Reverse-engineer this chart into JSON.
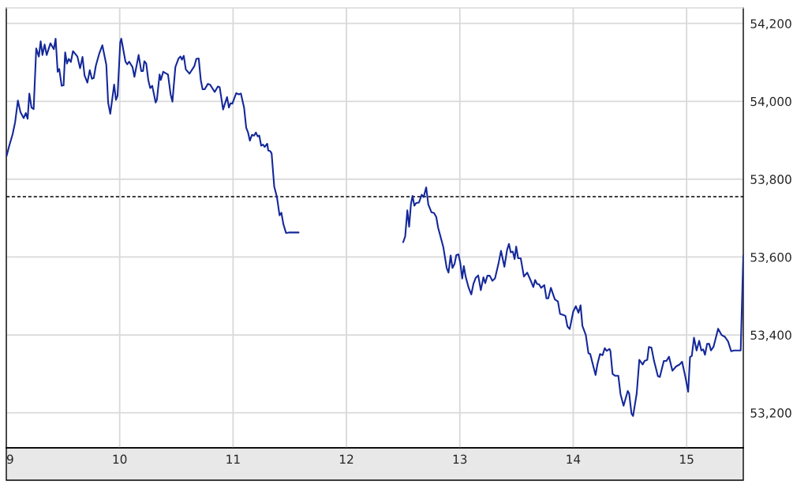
{
  "chart_data": {
    "type": "line",
    "x": [
      9.002,
      9.026,
      9.056,
      9.078,
      9.102,
      9.125,
      9.153,
      9.172,
      9.188,
      9.203,
      9.222,
      9.241,
      9.264,
      9.287,
      9.303,
      9.319,
      9.338,
      9.356,
      9.389,
      9.419,
      9.435,
      9.453,
      9.467,
      9.488,
      9.505,
      9.519,
      9.535,
      9.551,
      9.569,
      9.588,
      9.627,
      9.651,
      9.672,
      9.69,
      9.715,
      9.736,
      9.755,
      9.771,
      9.79,
      9.819,
      9.847,
      9.882,
      9.898,
      9.917,
      9.951,
      9.967,
      9.981,
      10.005,
      10.014,
      10.051,
      10.067,
      10.083,
      10.113,
      10.13,
      10.167,
      10.19,
      10.206,
      10.217,
      10.234,
      10.252,
      10.269,
      10.287,
      10.317,
      10.328,
      10.352,
      10.363,
      10.384,
      10.426,
      10.449,
      10.465,
      10.491,
      10.519,
      10.537,
      10.549,
      10.565,
      10.583,
      10.616,
      10.658,
      10.676,
      10.697,
      10.715,
      10.731,
      10.75,
      10.778,
      10.797,
      10.838,
      10.866,
      10.882,
      10.912,
      10.947,
      10.963,
      10.977,
      10.993,
      11.028,
      11.051,
      11.069,
      11.097,
      11.116,
      11.132,
      11.148,
      11.167,
      11.185,
      11.201,
      11.217,
      11.231,
      11.248,
      11.264,
      11.278,
      11.301,
      11.31,
      11.328,
      11.34,
      11.363,
      11.387,
      11.41,
      11.426,
      11.444,
      11.467,
      11.491,
      11.578,
      12.0,
      12.5,
      12.518,
      12.537,
      12.553,
      12.569,
      12.583,
      12.599,
      12.615,
      12.639,
      12.664,
      12.681,
      12.703,
      12.722,
      12.75,
      12.773,
      12.792,
      12.808,
      12.854,
      12.884,
      12.9,
      12.919,
      12.935,
      12.953,
      12.969,
      12.988,
      13.004,
      13.021,
      13.035,
      13.051,
      13.078,
      13.101,
      13.12,
      13.139,
      13.162,
      13.185,
      13.208,
      13.224,
      13.243,
      13.264,
      13.287,
      13.31,
      13.34,
      13.363,
      13.393,
      13.417,
      13.433,
      13.449,
      13.467,
      13.483,
      13.497,
      13.514,
      13.537,
      13.565,
      13.594,
      13.629,
      13.648,
      13.664,
      13.681,
      13.699,
      13.717,
      13.745,
      13.764,
      13.78,
      13.803,
      13.838,
      13.865,
      13.884,
      13.907,
      13.931,
      13.949,
      13.969,
      14.0,
      14.023,
      14.046,
      14.065,
      14.081,
      14.111,
      14.134,
      14.15,
      14.167,
      14.197,
      14.213,
      14.236,
      14.259,
      14.278,
      14.296,
      14.319,
      14.328,
      14.347,
      14.37,
      14.398,
      14.417,
      14.444,
      14.481,
      14.493,
      14.514,
      14.528,
      14.56,
      14.583,
      14.613,
      14.629,
      14.653,
      14.667,
      14.69,
      14.713,
      14.747,
      14.764,
      14.799,
      14.822,
      14.845,
      14.875,
      14.907,
      14.938,
      14.96,
      14.99,
      15.014,
      15.03,
      15.046,
      15.065,
      15.088,
      15.111,
      15.13,
      15.146,
      15.162,
      15.181,
      15.199,
      15.215,
      15.238,
      15.278,
      15.308,
      15.338,
      15.366,
      15.393,
      15.417,
      15.477,
      15.5
    ],
    "series": [
      {
        "color": "#14289a",
        "values": [
          53859,
          53886,
          53916,
          53947,
          54002,
          53972,
          53957,
          53970,
          53955,
          54020,
          53984,
          53980,
          54136,
          54115,
          54154,
          54119,
          54146,
          54119,
          54149,
          54134,
          54161,
          54076,
          54083,
          54040,
          54041,
          54126,
          54097,
          54109,
          54101,
          54129,
          54115,
          54085,
          54114,
          54067,
          54048,
          54080,
          54058,
          54060,
          54092,
          54122,
          54144,
          54094,
          53997,
          53968,
          54043,
          54004,
          54014,
          54152,
          54161,
          54102,
          54095,
          54102,
          54088,
          54063,
          54119,
          54078,
          54078,
          54103,
          54097,
          54055,
          54034,
          54040,
          53997,
          54004,
          54069,
          54055,
          54076,
          54069,
          54018,
          53999,
          54088,
          54110,
          54115,
          54107,
          54117,
          54082,
          54071,
          54090,
          54109,
          54110,
          54055,
          54031,
          54031,
          54045,
          54043,
          54024,
          54038,
          54036,
          53979,
          54011,
          53984,
          53995,
          53994,
          54021,
          54018,
          54020,
          53984,
          53932,
          53920,
          53899,
          53914,
          53912,
          53920,
          53910,
          53912,
          53886,
          53889,
          53883,
          53891,
          53874,
          53872,
          53866,
          53781,
          53754,
          53707,
          53714,
          53684,
          53662,
          53663,
          53663,
          null,
          53638,
          53653,
          53720,
          53678,
          53737,
          53757,
          53732,
          53739,
          53740,
          53760,
          53754,
          53779,
          53735,
          53715,
          53713,
          53703,
          53676,
          53626,
          53572,
          53560,
          53604,
          53572,
          53582,
          53605,
          53607,
          53585,
          53545,
          53577,
          53550,
          53521,
          53504,
          53531,
          53546,
          53553,
          53515,
          53548,
          53533,
          53552,
          53552,
          53539,
          53545,
          53582,
          53616,
          53575,
          53619,
          53634,
          53612,
          53614,
          53595,
          53627,
          53597,
          53597,
          53550,
          53560,
          53537,
          53523,
          53541,
          53531,
          53530,
          53521,
          53528,
          53494,
          53494,
          53521,
          53491,
          53486,
          53454,
          53452,
          53449,
          53422,
          53415,
          53460,
          53474,
          53457,
          53476,
          53423,
          53400,
          53353,
          53351,
          53331,
          53297,
          53324,
          53351,
          53348,
          53366,
          53359,
          53364,
          53359,
          53300,
          53295,
          53295,
          53248,
          53218,
          53256,
          53250,
          53198,
          53192,
          53250,
          53336,
          53324,
          53333,
          53336,
          53369,
          53367,
          53333,
          53294,
          53292,
          53333,
          53333,
          53344,
          53308,
          53319,
          53324,
          53331,
          53291,
          53254,
          53343,
          53346,
          53393,
          53360,
          53385,
          53360,
          53363,
          53349,
          53377,
          53377,
          53360,
          53370,
          53416,
          53400,
          53395,
          53383,
          53358,
          53360,
          53360,
          53605
        ]
      }
    ],
    "xlim": [
      9,
      15.5
    ],
    "xticks": [
      9,
      10,
      11,
      12,
      13,
      14,
      15
    ],
    "ylim": [
      53110,
      54240
    ],
    "yticks": [
      {
        "value": 53200,
        "label": "53,200"
      },
      {
        "value": 53400,
        "label": "53,400"
      },
      {
        "value": 53600,
        "label": "53,600"
      },
      {
        "value": 53800,
        "label": "53,800"
      },
      {
        "value": 54000,
        "label": "54,000"
      },
      {
        "value": 54200,
        "label": "54,200"
      }
    ],
    "ref_lines": [
      {
        "axis": "y",
        "value": 53755,
        "color": "#000000",
        "line_style": "dashed"
      }
    ],
    "grid": true,
    "legend": false,
    "marker": "none",
    "line_style": "solid"
  }
}
